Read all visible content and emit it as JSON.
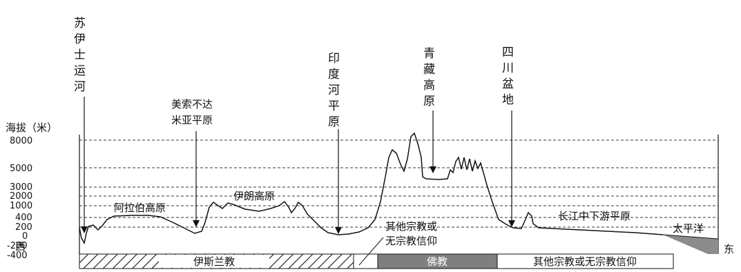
{
  "axis": {
    "title": "海拔（米）",
    "ticks": [
      "8000",
      "5000",
      "3000",
      "2000",
      "1000",
      "400",
      "200",
      "0",
      "-200",
      "-400"
    ]
  },
  "directions": {
    "west": "西",
    "east": "东"
  },
  "marker_labels": {
    "suez": "苏伊士运河",
    "mesopotamia_line1": "美索不达",
    "mesopotamia_line2": "米亚平原",
    "indus": "印度河平原",
    "tibet": "青藏高原",
    "sichuan": "四川盆地"
  },
  "region_labels": {
    "arabia": "阿拉伯高原",
    "iran": "伊朗高原",
    "yangtze": "长江中下游平原",
    "pacific": "太平洋"
  },
  "religion_bands": [
    {
      "label": "伊斯兰教",
      "style": "hatched"
    },
    {
      "label": "",
      "style": "white"
    },
    {
      "label": "佛教",
      "style": "gray"
    },
    {
      "label": "其他宗教或无宗教信仰",
      "style": "white"
    }
  ],
  "callout": {
    "line1": "其他宗教或",
    "line2": "无宗教信仰"
  },
  "colors": {
    "buddhism_band": "#7f7f7f",
    "ocean": "#8c8c8c",
    "line": "#111111"
  }
}
